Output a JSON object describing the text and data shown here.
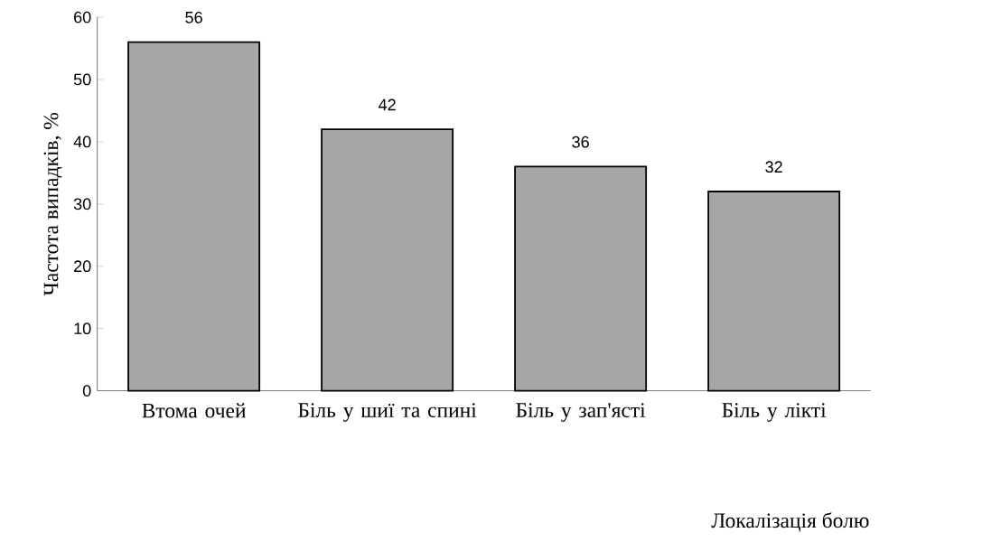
{
  "chart_data": {
    "type": "bar",
    "xlabel": "Локалізація болю",
    "ylabel": "Частота випадків, %",
    "categories": [
      "Втома очей",
      "Біль у шиї та спині",
      "Біль у зап'ясті",
      "Біль у лікті"
    ],
    "values": [
      56,
      42,
      36,
      32
    ],
    "color": "#a6a6a6",
    "ylim": [
      0,
      60
    ],
    "yticks": [
      0,
      10,
      20,
      30,
      40,
      50,
      60
    ],
    "grid": false,
    "data_labels": true
  }
}
